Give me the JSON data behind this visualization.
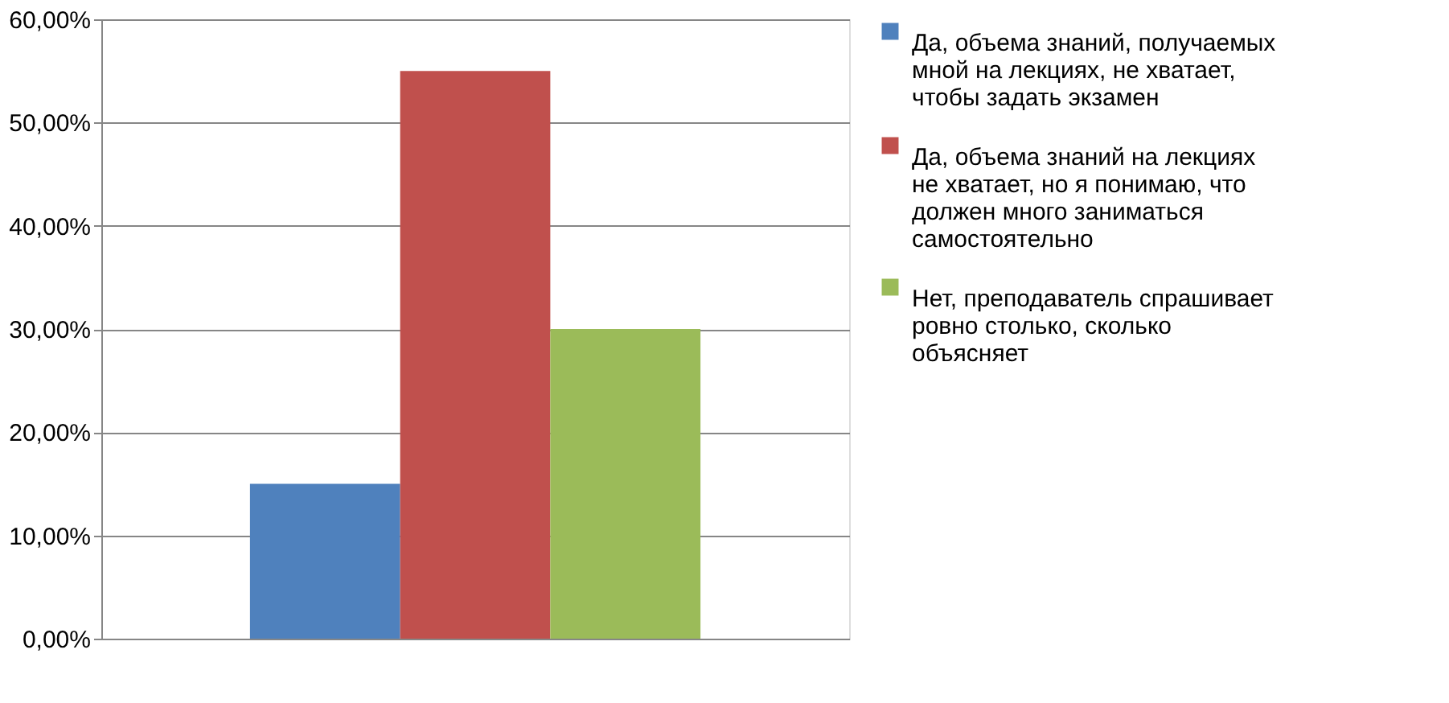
{
  "chart_data": {
    "type": "bar",
    "categories": [
      null
    ],
    "series": [
      {
        "name": "Да, объема знаний, получаемых мной на лекциях, не хватает, чтобы задать экзамен",
        "color": "#4f81bd",
        "values": [
          15
        ]
      },
      {
        "name": "Да, объема знаний на лекциях не хватает, но я понимаю, что должен много заниматься самостоятельно",
        "color": "#c0504d",
        "values": [
          55
        ]
      },
      {
        "name": "Нет, преподаватель спрашивает ровно столько, сколько объясняет",
        "color": "#9bbb59",
        "values": [
          30
        ]
      }
    ],
    "ylim": [
      0,
      60
    ],
    "yticks": [
      {
        "value": 0,
        "label": "0,00%"
      },
      {
        "value": 10,
        "label": "10,00%"
      },
      {
        "value": 20,
        "label": "20,00%"
      },
      {
        "value": 30,
        "label": "30,00%"
      },
      {
        "value": 40,
        "label": "40,00%"
      },
      {
        "value": 50,
        "label": "50,00%"
      },
      {
        "value": 60,
        "label": "60,00%"
      }
    ],
    "grid": "y",
    "legend": "right"
  }
}
